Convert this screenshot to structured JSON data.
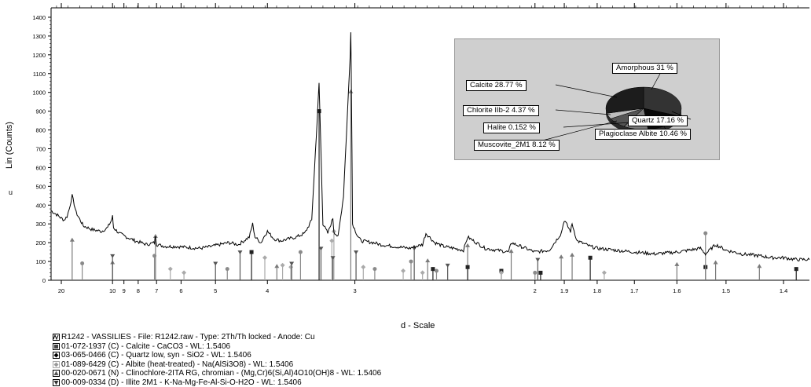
{
  "chart_data": {
    "type": "line",
    "ylabel": "Lin (Counts)",
    "xlabel": "d - Scale",
    "ylim": [
      0,
      1450
    ],
    "x_ticks": [
      "20",
      "10",
      "9",
      "8",
      "7",
      "6",
      "5",
      "4",
      "3",
      "2",
      "1.9",
      "1.8",
      "1.7",
      "1.6",
      "1.5",
      "1.4"
    ],
    "y_ticks": [
      "0",
      "100",
      "200",
      "300",
      "400",
      "500",
      "600",
      "700",
      "800",
      "900",
      "1000",
      "1100",
      "1200",
      "1300",
      "1400"
    ],
    "y_side_mark": "u",
    "series": [
      {
        "d": [
          25,
          22,
          20,
          19,
          18,
          17.3,
          16.5,
          15.5,
          14,
          12.5,
          11.2,
          10.5,
          10.1,
          10,
          9.9,
          9.4,
          8.8,
          8.2,
          7.5,
          7.1,
          7.05,
          7,
          6.6,
          6.2,
          5.8,
          5.4,
          5.1,
          4.9,
          4.7,
          4.5,
          4.3,
          4.24,
          4.2,
          4.1,
          4.04,
          4.0,
          3.9,
          3.8,
          3.7,
          3.6,
          3.5,
          3.42,
          3.35,
          3.34,
          3.33,
          3.3,
          3.25,
          3.2,
          3.19,
          3.15,
          3.1,
          3.04,
          3.035,
          3.03,
          3.02,
          2.98,
          2.95,
          2.85,
          2.8,
          2.7,
          2.6,
          2.52,
          2.5,
          2.45,
          2.4,
          2.3,
          2.28,
          2.2,
          2.1,
          2.09,
          2.0,
          1.95,
          1.91,
          1.9,
          1.88,
          1.875,
          1.86,
          1.82,
          1.8,
          1.75,
          1.7,
          1.65,
          1.6,
          1.55,
          1.54,
          1.52,
          1.5,
          1.47,
          1.44,
          1.42,
          1.4,
          1.38,
          1.36
        ],
        "y": [
          370,
          350,
          330,
          320,
          340,
          380,
          450,
          360,
          290,
          270,
          260,
          280,
          320,
          340,
          280,
          250,
          230,
          210,
          190,
          200,
          240,
          190,
          180,
          180,
          175,
          170,
          180,
          190,
          200,
          190,
          230,
          300,
          230,
          200,
          240,
          260,
          220,
          210,
          220,
          230,
          250,
          320,
          950,
          1050,
          870,
          300,
          250,
          330,
          260,
          230,
          450,
          1200,
          1320,
          1050,
          300,
          240,
          210,
          200,
          190,
          180,
          170,
          190,
          250,
          200,
          180,
          160,
          230,
          170,
          150,
          200,
          150,
          160,
          250,
          320,
          260,
          300,
          210,
          180,
          170,
          160,
          150,
          140,
          150,
          170,
          140,
          190,
          160,
          140,
          130,
          120,
          120,
          110,
          110
        ]
      }
    ],
    "reference_patterns": [
      {
        "name": "Calcite",
        "color": "#7a7a7a",
        "sticks": [
          [
            16.5,
            210
          ],
          [
            10,
            90
          ],
          [
            7.05,
            230
          ],
          [
            3.86,
            70
          ],
          [
            3.035,
            1000
          ],
          [
            2.49,
            100
          ],
          [
            2.28,
            180
          ],
          [
            2.09,
            150
          ],
          [
            1.91,
            120
          ],
          [
            1.875,
            130
          ],
          [
            1.6,
            80
          ],
          [
            1.52,
            90
          ],
          [
            1.44,
            70
          ]
        ]
      },
      {
        "name": "Quartz",
        "color": "#222222",
        "sticks": [
          [
            4.26,
            150
          ],
          [
            3.34,
            900
          ],
          [
            2.46,
            60
          ],
          [
            2.28,
            70
          ],
          [
            2.13,
            50
          ],
          [
            1.98,
            40
          ],
          [
            1.82,
            120
          ],
          [
            1.54,
            70
          ],
          [
            1.38,
            60
          ]
        ]
      },
      {
        "name": "Albite",
        "color": "#aaaaaa",
        "sticks": [
          [
            6.4,
            60
          ],
          [
            5.9,
            40
          ],
          [
            4.04,
            120
          ],
          [
            3.78,
            80
          ],
          [
            3.67,
            70
          ],
          [
            3.21,
            210
          ],
          [
            3.19,
            260
          ],
          [
            2.93,
            70
          ],
          [
            2.64,
            50
          ],
          [
            2.52,
            40
          ],
          [
            2.13,
            40
          ],
          [
            1.78,
            40
          ]
        ]
      },
      {
        "name": "Clinochlore",
        "color": "#8a8a8a",
        "sticks": [
          [
            14.2,
            90
          ],
          [
            7.1,
            130
          ],
          [
            4.73,
            60
          ],
          [
            3.55,
            150
          ],
          [
            2.84,
            60
          ],
          [
            2.59,
            100
          ],
          [
            2.44,
            50
          ],
          [
            2.0,
            40
          ],
          [
            1.54,
            250
          ]
        ]
      },
      {
        "name": "Illite",
        "color": "#555555",
        "sticks": [
          [
            10,
            130
          ],
          [
            5.0,
            90
          ],
          [
            4.47,
            150
          ],
          [
            3.66,
            90
          ],
          [
            3.32,
            170
          ],
          [
            3.2,
            120
          ],
          [
            2.99,
            150
          ],
          [
            2.57,
            170
          ],
          [
            2.38,
            80
          ],
          [
            1.99,
            110
          ]
        ]
      }
    ],
    "pie": {
      "slices": [
        {
          "label": "Amorphous 31 %",
          "value": 31.0,
          "color": "#333333"
        },
        {
          "label": "Quartz 17.16 %",
          "value": 17.16,
          "color": "#080808"
        },
        {
          "label": "Plagioclase Albite 10.46 %",
          "value": 10.46,
          "color": "#7a7a7a"
        },
        {
          "label": "Halite 0.152 %",
          "value": 0.152,
          "color": "#a0a0a0"
        },
        {
          "label": "Muscovite_2M1 8.12 %",
          "value": 8.12,
          "color": "#555555"
        },
        {
          "label": "Chlorite IIb-2 4.37 %",
          "value": 4.37,
          "color": "#bdbdbd"
        },
        {
          "label": "Calcite 28.77 %",
          "value": 28.77,
          "color": "#1c1c1c"
        }
      ]
    },
    "legend": [
      {
        "text": "R1242 - VASSILIES - File: R1242.raw - Type: 2Th/Th locked - Anode: Cu",
        "icon": "line-pattern-icon"
      },
      {
        "text": "01-072-1937 (C) - Calcite - CaCO3 - WL: 1.5406",
        "icon": "filled-square-icon"
      },
      {
        "text": "03-065-0466 (C) - Quartz low, syn - SiO2 - WL: 1.5406",
        "icon": "diamond-icon"
      },
      {
        "text": "01-089-6429 (C) - Albite (heat-treated) - Na(AlSi3O8) - WL: 1.5406",
        "icon": "gray-diamond-icon"
      },
      {
        "text": "00-020-0671 (N) - Clinochlore-2ITA RG, chromian - (Mg,Cr)6(Si,Al)4O10(OH)8 - WL: 1.5406",
        "icon": "triangle-up-icon"
      },
      {
        "text": "00-009-0334 (D) - Illite 2M1 - K-Na-Mg-Fe-Al-Si-O-H2O - WL: 1.5406",
        "icon": "triangle-down-icon"
      }
    ]
  }
}
